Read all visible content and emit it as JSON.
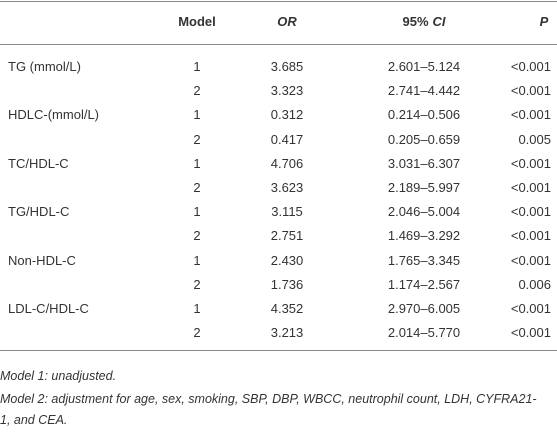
{
  "table": {
    "header": [
      "Model",
      "OR",
      [
        "95%",
        "CI"
      ],
      "P"
    ],
    "groups": [
      {
        "label": "TG (mmol/L)",
        "rows": [
          [
            "1",
            "3.685",
            "2.601–5.124",
            "<0.001"
          ],
          [
            "2",
            "3.323",
            "2.741–4.442",
            "<0.001"
          ]
        ]
      },
      {
        "label": "HDLC-(mmol/L)",
        "rows": [
          [
            "1",
            "0.312",
            "0.214–0.506",
            "<0.001"
          ],
          [
            "2",
            "0.417",
            "0.205–0.659",
            "0.005"
          ]
        ]
      },
      {
        "label": "TC/HDL-C",
        "rows": [
          [
            "1",
            "4.706",
            "3.031–6.307",
            "<0.001"
          ],
          [
            "2",
            "3.623",
            "2.189–5.997",
            "<0.001"
          ]
        ]
      },
      {
        "label": "TG/HDL-C",
        "rows": [
          [
            "1",
            "3.115",
            "2.046–5.004",
            "<0.001"
          ],
          [
            "2",
            "2.751",
            "1.469–3.292",
            "<0.001"
          ]
        ]
      },
      {
        "label": "Non-HDL-C",
        "rows": [
          [
            "1",
            "2.430",
            "1.765–3.345",
            "<0.001"
          ],
          [
            "2",
            "1.736",
            "1.174–2.567",
            "0.006"
          ]
        ]
      },
      {
        "label": "LDL-C/HDL-C",
        "rows": [
          [
            "1",
            "4.352",
            "2.970–6.005",
            "<0.001"
          ],
          [
            "2",
            "3.213",
            "2.014–5.770",
            "<0.001"
          ]
        ]
      }
    ],
    "footnotes": [
      "Model 1: unadjusted.",
      "Model 2: adjustment for age, sex, smoking, SBP, DBP, WBCC, neutrophil count, LDH, CYFRA21-1, and CEA."
    ]
  }
}
